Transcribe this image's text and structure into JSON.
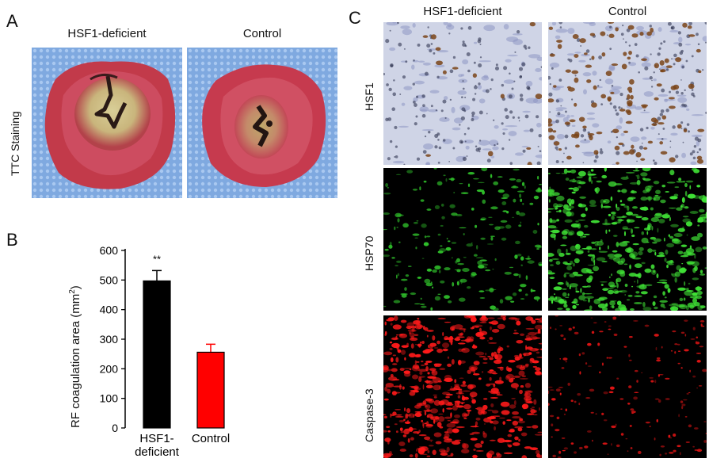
{
  "panel_a": {
    "letter": "A",
    "col_labels": [
      "HSF1-deficient",
      "Control"
    ],
    "row_label": "TTC Staining"
  },
  "panel_b": {
    "letter": "B",
    "ylabel": "RF coagulation area (mm",
    "ylabel_sup": "2",
    "ylabel_close": ")",
    "yticks": [
      "0",
      "100",
      "200",
      "300",
      "400",
      "500",
      "600"
    ],
    "significance": "**"
  },
  "panel_c": {
    "letter": "C",
    "col_labels": [
      "HSF1-deficient",
      "Control"
    ],
    "row_labels": [
      "HSF1",
      "HSP70",
      "Caspase-3"
    ]
  },
  "chart_data": {
    "type": "bar",
    "categories": [
      "HSF1-\ndeficient",
      "Control"
    ],
    "category_lines": [
      [
        "HSF1-",
        "deficient"
      ],
      [
        "Control"
      ]
    ],
    "values": [
      497,
      256
    ],
    "errors": [
      35,
      27
    ],
    "colors": [
      "#000000",
      "#ff0000"
    ],
    "ylabel": "RF coagulation area (mm2)",
    "ylim": [
      0,
      600
    ],
    "annotations": [
      {
        "category": "HSF1-\ndeficient",
        "text": "**"
      }
    ]
  }
}
